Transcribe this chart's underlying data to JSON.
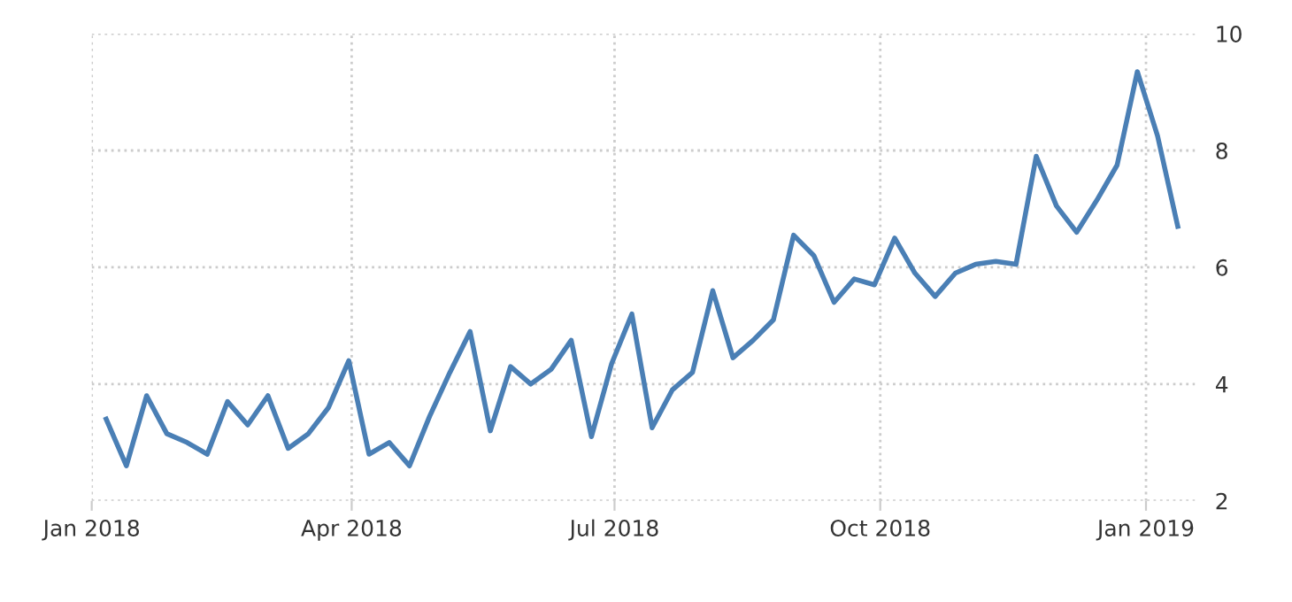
{
  "chart_data": {
    "type": "line",
    "x": [
      "2018-01-06",
      "2018-01-13",
      "2018-01-20",
      "2018-01-27",
      "2018-02-03",
      "2018-02-10",
      "2018-02-17",
      "2018-02-24",
      "2018-03-03",
      "2018-03-10",
      "2018-03-17",
      "2018-03-24",
      "2018-03-31",
      "2018-04-07",
      "2018-04-14",
      "2018-04-21",
      "2018-04-28",
      "2018-05-05",
      "2018-05-12",
      "2018-05-19",
      "2018-05-26",
      "2018-06-02",
      "2018-06-09",
      "2018-06-16",
      "2018-06-23",
      "2018-06-30",
      "2018-07-07",
      "2018-07-14",
      "2018-07-21",
      "2018-07-28",
      "2018-08-04",
      "2018-08-11",
      "2018-08-18",
      "2018-08-25",
      "2018-09-01",
      "2018-09-08",
      "2018-09-15",
      "2018-09-22",
      "2018-09-29",
      "2018-10-06",
      "2018-10-13",
      "2018-10-20",
      "2018-10-27",
      "2018-11-03",
      "2018-11-10",
      "2018-11-17",
      "2018-11-24",
      "2018-12-01",
      "2018-12-08",
      "2018-12-15",
      "2018-12-22",
      "2018-12-29",
      "2019-01-05",
      "2019-01-12"
    ],
    "series": [
      {
        "color": "#4a7fb5",
        "values": [
          3.4,
          2.6,
          3.8,
          3.15,
          3.0,
          2.8,
          3.7,
          3.3,
          3.8,
          2.9,
          3.15,
          3.6,
          4.4,
          2.8,
          3.0,
          2.6,
          3.45,
          4.2,
          4.9,
          3.2,
          4.3,
          4.0,
          4.25,
          4.75,
          3.1,
          4.35,
          5.2,
          3.25,
          3.9,
          4.2,
          5.6,
          4.45,
          4.75,
          5.1,
          6.55,
          6.2,
          5.4,
          5.8,
          5.7,
          6.5,
          5.9,
          5.5,
          5.9,
          6.05,
          6.1,
          6.05,
          7.9,
          7.05,
          6.6,
          7.15,
          7.75,
          9.35,
          8.25,
          6.7
        ]
      }
    ],
    "xlim": [
      "2018-01-01",
      "2019-01-18"
    ],
    "xticks": [
      {
        "value": "2018-01-01",
        "label": "Jan 2018"
      },
      {
        "value": "2018-04-01",
        "label": "Apr 2018"
      },
      {
        "value": "2018-07-01",
        "label": "Jul 2018"
      },
      {
        "value": "2018-10-01",
        "label": "Oct 2018"
      },
      {
        "value": "2019-01-01",
        "label": "Jan 2019"
      }
    ],
    "ylim": [
      2,
      10
    ],
    "yticks": [
      2,
      4,
      6,
      8,
      10
    ],
    "grid": true,
    "line_style": "solid"
  }
}
